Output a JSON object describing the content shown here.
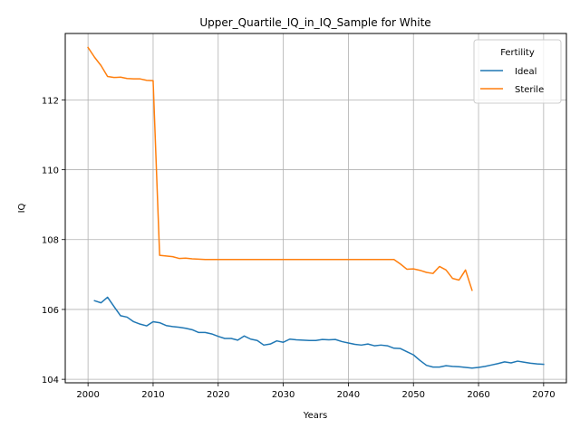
{
  "chart_data": {
    "type": "line",
    "title": "Upper_Quartile_IQ_in_IQ_Sample for White",
    "xlabel": "Years",
    "ylabel": "IQ",
    "xlim": [
      1996.5,
      2073.5
    ],
    "ylim": [
      103.9,
      113.9
    ],
    "x_ticks": [
      2000,
      2010,
      2020,
      2030,
      2040,
      2050,
      2060,
      2070
    ],
    "y_ticks": [
      104,
      106,
      108,
      110,
      112
    ],
    "grid": true,
    "legend": {
      "title": "Fertility",
      "position": "top-right"
    },
    "series": [
      {
        "name": "Ideal",
        "color": "#1f77b4",
        "x": [
          2001,
          2002,
          2003,
          2004,
          2005,
          2006,
          2007,
          2008,
          2009,
          2010,
          2011,
          2012,
          2013,
          2014,
          2015,
          2016,
          2017,
          2018,
          2019,
          2020,
          2021,
          2022,
          2023,
          2024,
          2025,
          2026,
          2027,
          2028,
          2029,
          2030,
          2031,
          2032,
          2033,
          2034,
          2035,
          2036,
          2037,
          2038,
          2039,
          2040,
          2041,
          2042,
          2043,
          2044,
          2045,
          2046,
          2047,
          2048,
          2049,
          2050,
          2051,
          2052,
          2053,
          2054,
          2055,
          2056,
          2057,
          2058,
          2059,
          2060,
          2061,
          2062,
          2063,
          2064,
          2065,
          2066,
          2067,
          2068,
          2069,
          2070
        ],
        "values": [
          106.25,
          106.19,
          106.35,
          106.08,
          105.82,
          105.78,
          105.65,
          105.58,
          105.53,
          105.65,
          105.62,
          105.54,
          105.51,
          105.49,
          105.46,
          105.42,
          105.34,
          105.34,
          105.3,
          105.23,
          105.17,
          105.17,
          105.12,
          105.24,
          105.15,
          105.11,
          104.98,
          105.01,
          105.1,
          105.06,
          105.15,
          105.13,
          105.12,
          105.11,
          105.11,
          105.14,
          105.13,
          105.14,
          105.08,
          105.04,
          105.0,
          104.98,
          105.01,
          104.96,
          104.98,
          104.96,
          104.89,
          104.88,
          104.79,
          104.7,
          104.54,
          104.4,
          104.35,
          104.35,
          104.39,
          104.37,
          104.36,
          104.34,
          104.32,
          104.34,
          104.37,
          104.41,
          104.45,
          104.5,
          104.47,
          104.52,
          104.49,
          104.46,
          104.44,
          104.43
        ]
      },
      {
        "name": "Sterile",
        "color": "#ff7f0e",
        "x": [
          2000,
          2001,
          2002,
          2003,
          2004,
          2005,
          2006,
          2007,
          2008,
          2009,
          2010,
          2011,
          2012,
          2013,
          2014,
          2015,
          2016,
          2017,
          2018,
          2019,
          2020,
          2021,
          2022,
          2023,
          2024,
          2025,
          2026,
          2027,
          2028,
          2029,
          2030,
          2031,
          2032,
          2033,
          2034,
          2035,
          2036,
          2037,
          2038,
          2039,
          2040,
          2041,
          2042,
          2043,
          2044,
          2045,
          2046,
          2047,
          2048,
          2049,
          2050,
          2051,
          2052,
          2053,
          2054,
          2055,
          2056,
          2057,
          2058,
          2059
        ],
        "values": [
          113.5,
          113.22,
          112.98,
          112.67,
          112.64,
          112.65,
          112.61,
          112.6,
          112.6,
          112.56,
          112.55,
          107.55,
          107.53,
          107.51,
          107.46,
          107.47,
          107.45,
          107.44,
          107.43,
          107.43,
          107.43,
          107.43,
          107.43,
          107.43,
          107.43,
          107.43,
          107.43,
          107.43,
          107.43,
          107.43,
          107.43,
          107.43,
          107.43,
          107.43,
          107.43,
          107.43,
          107.43,
          107.43,
          107.43,
          107.43,
          107.43,
          107.43,
          107.43,
          107.43,
          107.43,
          107.43,
          107.43,
          107.43,
          107.3,
          107.15,
          107.16,
          107.12,
          107.06,
          107.03,
          107.23,
          107.13,
          106.89,
          106.84,
          107.13,
          106.55
        ]
      }
    ]
  }
}
